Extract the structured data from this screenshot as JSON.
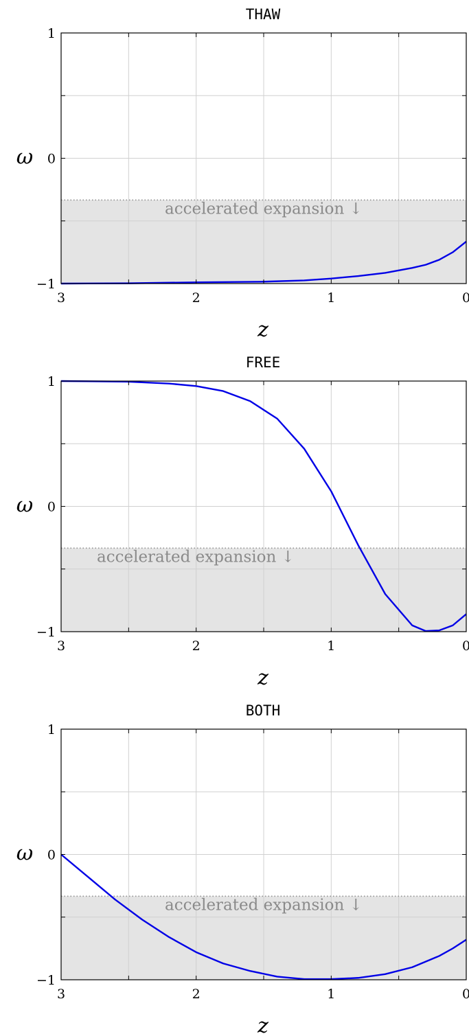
{
  "chart_data": [
    {
      "type": "line",
      "title": "THAW",
      "xlabel": "z",
      "ylabel": "ω",
      "xlim": [
        3,
        0
      ],
      "x_reversed": true,
      "ylim": [
        -1,
        1
      ],
      "xticks": [
        "3",
        "2",
        "1",
        "0"
      ],
      "yticks": [
        "1",
        "0",
        "−1"
      ],
      "grid": true,
      "shaded_region": {
        "y_from": -1,
        "y_to": -0.333,
        "label": "accelerated expansion ↓"
      },
      "series": [
        {
          "color": "#0000e6",
          "x": [
            3.0,
            2.5,
            2.0,
            1.5,
            1.2,
            1.0,
            0.8,
            0.6,
            0.4,
            0.3,
            0.2,
            0.1,
            0.0
          ],
          "y": [
            -1.0,
            -0.998,
            -0.99,
            -0.985,
            -0.975,
            -0.96,
            -0.94,
            -0.915,
            -0.875,
            -0.85,
            -0.81,
            -0.75,
            -0.665
          ]
        }
      ]
    },
    {
      "type": "line",
      "title": "FREE",
      "xlabel": "z",
      "ylabel": "ω",
      "xlim": [
        3,
        0
      ],
      "x_reversed": true,
      "ylim": [
        -1,
        1
      ],
      "xticks": [
        "3",
        "2",
        "1",
        "0"
      ],
      "yticks": [
        "1",
        "0",
        "−1"
      ],
      "grid": true,
      "shaded_region": {
        "y_from": -1,
        "y_to": -0.333,
        "label": "accelerated expansion ↓"
      },
      "series": [
        {
          "color": "#0000e6",
          "x": [
            3.0,
            2.5,
            2.2,
            2.0,
            1.8,
            1.6,
            1.4,
            1.2,
            1.0,
            0.8,
            0.6,
            0.4,
            0.3,
            0.2,
            0.1,
            0.0
          ],
          "y": [
            1.0,
            0.995,
            0.98,
            0.96,
            0.92,
            0.84,
            0.7,
            0.46,
            0.12,
            -0.31,
            -0.7,
            -0.95,
            -0.995,
            -0.99,
            -0.95,
            -0.86
          ]
        }
      ]
    },
    {
      "type": "line",
      "title": "BOTH",
      "xlabel": "z",
      "ylabel": "ω",
      "xlim": [
        3,
        0
      ],
      "x_reversed": true,
      "ylim": [
        -1,
        1
      ],
      "xticks": [
        "3",
        "2",
        "1",
        "0"
      ],
      "yticks": [
        "1",
        "0",
        "−1"
      ],
      "grid": true,
      "shaded_region": {
        "y_from": -1,
        "y_to": -0.333,
        "label": "accelerated expansion ↓"
      },
      "series": [
        {
          "color": "#0000e6",
          "x": [
            3.0,
            2.8,
            2.6,
            2.4,
            2.2,
            2.0,
            1.8,
            1.6,
            1.4,
            1.2,
            1.0,
            0.8,
            0.6,
            0.4,
            0.2,
            0.1,
            0.0
          ],
          "y": [
            0.0,
            -0.18,
            -0.36,
            -0.52,
            -0.66,
            -0.78,
            -0.87,
            -0.93,
            -0.975,
            -0.995,
            -0.995,
            -0.985,
            -0.955,
            -0.9,
            -0.81,
            -0.75,
            -0.68
          ]
        }
      ]
    }
  ]
}
